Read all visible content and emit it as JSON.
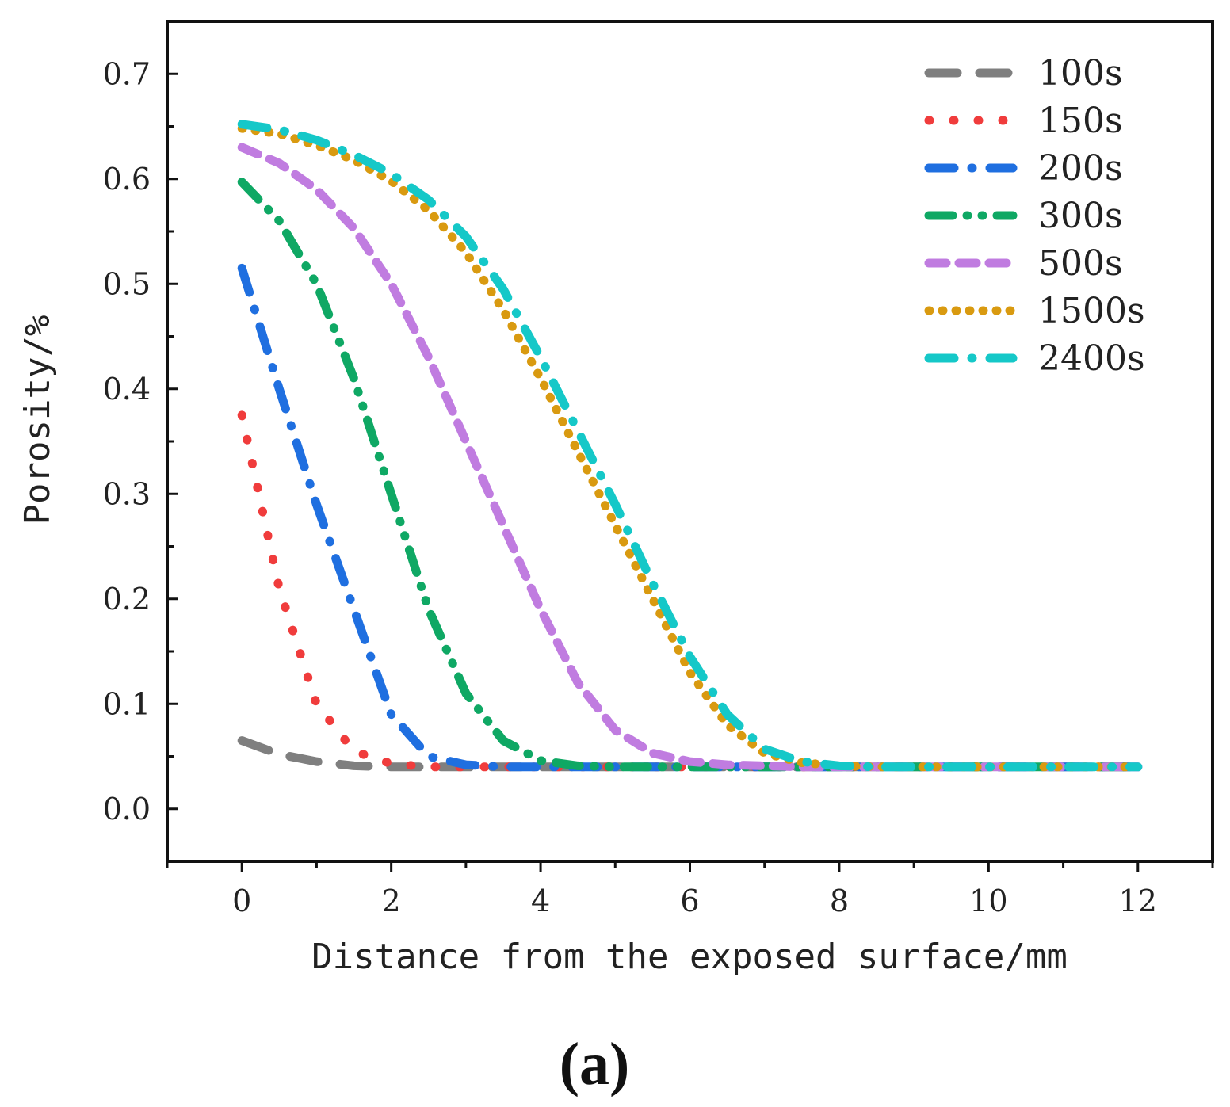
{
  "chart_data": {
    "type": "line",
    "title": "",
    "xlabel": "Distance from the exposed surface/mm",
    "ylabel": "Porosity/%",
    "xlim": [
      -1,
      13
    ],
    "ylim": [
      -0.05,
      0.75
    ],
    "xticks": [
      0,
      2,
      4,
      6,
      8,
      10,
      12
    ],
    "xtick_labels": [
      "0",
      "2",
      "4",
      "6",
      "8",
      "10",
      "12"
    ],
    "yticks": [
      0.0,
      0.1,
      0.2,
      0.3,
      0.4,
      0.5,
      0.6,
      0.7
    ],
    "ytick_labels": [
      "0.0",
      "0.1",
      "0.2",
      "0.3",
      "0.4",
      "0.5",
      "0.6",
      "0.7"
    ],
    "grid": false,
    "legend_position": "top-right",
    "panel_label": "(a)",
    "x": [
      0,
      0.5,
      1,
      1.5,
      2,
      2.5,
      3,
      3.5,
      4,
      4.5,
      5,
      5.5,
      6,
      6.5,
      7,
      7.5,
      8,
      8.5,
      9,
      9.5,
      10,
      10.5,
      11,
      11.5,
      12
    ],
    "series": [
      {
        "name": "100s",
        "color": "#7f7f7f",
        "dash": "dash",
        "values": [
          0.065,
          0.052,
          0.045,
          0.041,
          0.04,
          0.04,
          0.04,
          0.04,
          0.04,
          0.04,
          0.04,
          0.04,
          0.04,
          0.04,
          0.04,
          0.04,
          0.04,
          0.04,
          0.04,
          0.04,
          0.04,
          0.04,
          0.04,
          0.04,
          0.04
        ]
      },
      {
        "name": "150s",
        "color": "#f03c3c",
        "dash": "dot",
        "values": [
          0.375,
          0.21,
          0.1,
          0.055,
          0.043,
          0.04,
          0.04,
          0.04,
          0.04,
          0.04,
          0.04,
          0.04,
          0.04,
          0.04,
          0.04,
          0.04,
          0.04,
          0.04,
          0.04,
          0.04,
          0.04,
          0.04,
          0.04,
          0.04,
          0.04
        ]
      },
      {
        "name": "200s",
        "color": "#1f6fe0",
        "dash": "dashdot",
        "values": [
          0.515,
          0.4,
          0.29,
          0.19,
          0.09,
          0.05,
          0.042,
          0.04,
          0.04,
          0.04,
          0.04,
          0.04,
          0.04,
          0.04,
          0.04,
          0.04,
          0.04,
          0.04,
          0.04,
          0.04,
          0.04,
          0.04,
          0.04,
          0.04,
          0.04
        ]
      },
      {
        "name": "300s",
        "color": "#0fa864",
        "dash": "dashdotdot",
        "values": [
          0.597,
          0.56,
          0.5,
          0.41,
          0.3,
          0.19,
          0.11,
          0.065,
          0.046,
          0.041,
          0.04,
          0.04,
          0.04,
          0.04,
          0.04,
          0.04,
          0.04,
          0.04,
          0.04,
          0.04,
          0.04,
          0.04,
          0.04,
          0.04,
          0.04
        ]
      },
      {
        "name": "500s",
        "color": "#c07ce0",
        "dash": "shortdash",
        "values": [
          0.63,
          0.615,
          0.59,
          0.553,
          0.5,
          0.43,
          0.35,
          0.27,
          0.19,
          0.12,
          0.075,
          0.053,
          0.045,
          0.042,
          0.041,
          0.04,
          0.04,
          0.04,
          0.04,
          0.04,
          0.04,
          0.04,
          0.04,
          0.04,
          0.04
        ]
      },
      {
        "name": "1500s",
        "color": "#d99a10",
        "dash": "shortdot",
        "values": [
          0.648,
          0.643,
          0.632,
          0.618,
          0.598,
          0.57,
          0.53,
          0.475,
          0.41,
          0.34,
          0.27,
          0.2,
          0.13,
          0.08,
          0.053,
          0.044,
          0.041,
          0.04,
          0.04,
          0.04,
          0.04,
          0.04,
          0.04,
          0.04,
          0.04
        ]
      },
      {
        "name": "2400s",
        "color": "#15c8c8",
        "dash": "dashdot",
        "values": [
          0.652,
          0.647,
          0.637,
          0.623,
          0.605,
          0.58,
          0.545,
          0.495,
          0.43,
          0.36,
          0.29,
          0.215,
          0.145,
          0.09,
          0.057,
          0.045,
          0.041,
          0.04,
          0.04,
          0.04,
          0.04,
          0.04,
          0.04,
          0.04,
          0.04
        ]
      }
    ]
  }
}
